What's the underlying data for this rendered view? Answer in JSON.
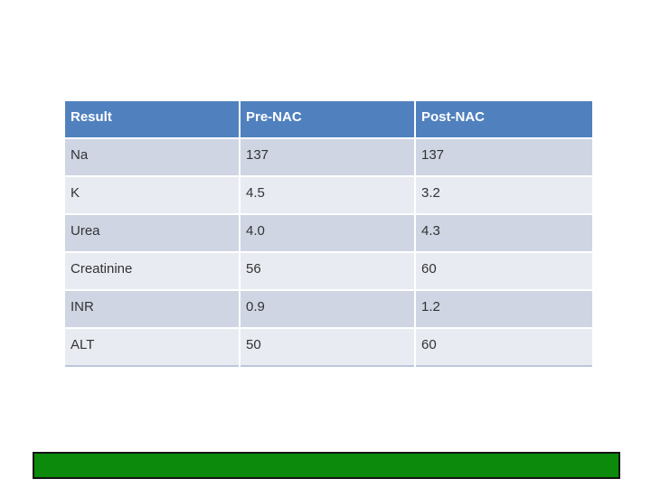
{
  "table": {
    "headers": [
      "Result",
      "Pre-NAC",
      "Post-NAC"
    ],
    "rows": [
      {
        "label": "Na",
        "pre_nac": "137",
        "post_nac": "137"
      },
      {
        "label": "K",
        "pre_nac": "4.5",
        "post_nac": "3.2"
      },
      {
        "label": "Urea",
        "pre_nac": "4.0",
        "post_nac": "4.3"
      },
      {
        "label": "Creatinine",
        "pre_nac": "56",
        "post_nac": "60"
      },
      {
        "label": "INR",
        "pre_nac": "0.9",
        "post_nac": "1.2"
      },
      {
        "label": "ALT",
        "pre_nac": "50",
        "post_nac": "60"
      }
    ]
  },
  "colors": {
    "header_fill": "#5081BE",
    "header_text": "#FFFFFF",
    "row_band_dark": "#CFD5E3",
    "row_band_light": "#E9EBF2",
    "body_text": "#333333",
    "table_bottom_border": "#BCC7DC",
    "footer_bar_fill": "#0B8A0B",
    "footer_bar_border": "#141414",
    "slide_background": "#FFFFFF"
  }
}
